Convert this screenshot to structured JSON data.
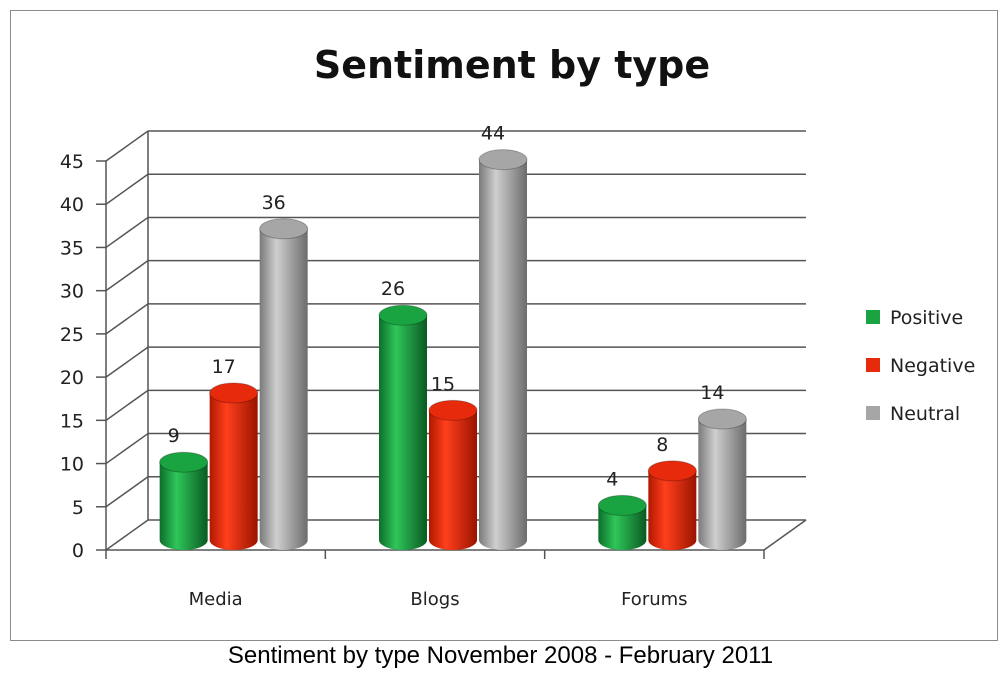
{
  "caption": "Sentiment by type November 2008 - February 2011",
  "chart_data": {
    "type": "bar",
    "title": "Sentiment by type",
    "categories": [
      "Media",
      "Blogs",
      "Forums"
    ],
    "series": [
      {
        "name": "Positive",
        "values": [
          9,
          26,
          4
        ],
        "color": "#1aa341"
      },
      {
        "name": "Negative",
        "values": [
          17,
          15,
          8
        ],
        "color": "#e82a0c"
      },
      {
        "name": "Neutral",
        "values": [
          36,
          44,
          14
        ],
        "color": "#a6a6a6"
      }
    ],
    "ylim": [
      0,
      45
    ],
    "yticks": [
      0,
      5,
      10,
      15,
      20,
      25,
      30,
      35,
      40,
      45
    ],
    "xlabel": "",
    "ylabel": "",
    "grid": true,
    "legend_position": "right",
    "style": "3d-cylinder"
  }
}
